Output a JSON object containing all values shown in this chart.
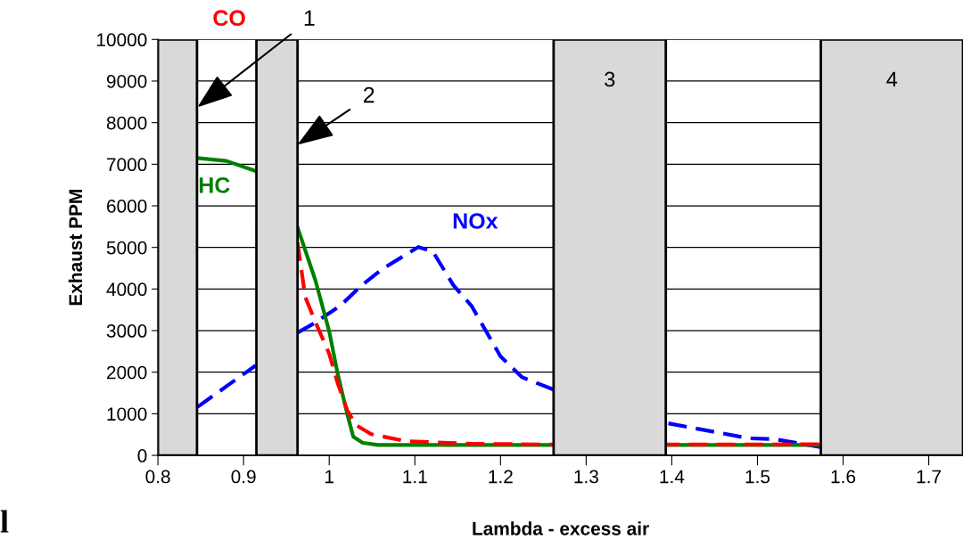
{
  "chart_data": {
    "type": "line",
    "xlabel": "Lambda - excess air",
    "ylabel": "Exhaust PPM",
    "xlim": [
      0.8,
      1.74
    ],
    "xticks": [
      {
        "value": 0.8,
        "label": "0.8"
      },
      {
        "value": 0.9,
        "label": "0.9"
      },
      {
        "value": 1.0,
        "label": "1"
      },
      {
        "value": 1.1,
        "label": "1.1"
      },
      {
        "value": 1.2,
        "label": "1.2"
      },
      {
        "value": 1.3,
        "label": "1.3"
      },
      {
        "value": 1.4,
        "label": "1.4"
      },
      {
        "value": 1.5,
        "label": "1.5"
      },
      {
        "value": 1.6,
        "label": "1.6"
      },
      {
        "value": 1.7,
        "label": "1.7"
      }
    ],
    "ylim": [
      0,
      10000
    ],
    "yticks": [
      0,
      1000,
      2000,
      3000,
      4000,
      5000,
      6000,
      7000,
      8000,
      9000,
      10000
    ],
    "grid": "y",
    "series": [
      {
        "color": "#ff0000",
        "line_style": "dashed",
        "x": [
          0.963,
          0.972,
          0.982,
          1.0,
          1.01,
          1.021,
          1.031,
          1.049,
          1.09,
          1.166,
          1.262,
          1.393,
          1.49,
          1.574
        ],
        "values": [
          5120,
          3810,
          3300,
          2440,
          1730,
          1090,
          730,
          510,
          340,
          280,
          260,
          260,
          260,
          270
        ]
      },
      {
        "color": "#008000",
        "line_style": "solid",
        "x": [
          0.846,
          0.88,
          0.915,
          0.94,
          0.963,
          0.984,
          1.0,
          1.01,
          1.021,
          1.028,
          1.039,
          1.057,
          1.262,
          1.393,
          1.574
        ],
        "values": [
          7150,
          7080,
          6830,
          null,
          5480,
          4200,
          2980,
          1950,
          1000,
          450,
          300,
          250,
          250,
          250,
          250
        ]
      },
      {
        "color": "#0000ff",
        "line_style": "dashed",
        "x": [
          0.846,
          0.914,
          0.94,
          0.963,
          0.982,
          1.013,
          1.038,
          1.062,
          1.104,
          1.121,
          1.145,
          1.166,
          1.2,
          1.225,
          1.262,
          1.33,
          1.396,
          1.49,
          1.52,
          1.573
        ],
        "values": [
          1160,
          2160,
          null,
          2950,
          3170,
          3600,
          4090,
          4480,
          5010,
          4900,
          4090,
          3600,
          2380,
          1880,
          1580,
          null,
          770,
          410,
          390,
          200
        ]
      }
    ],
    "bands": [
      {
        "axis": "x",
        "from": 0.8,
        "to": 0.8456,
        "label": null,
        "color": "#d9d9d9"
      },
      {
        "axis": "x",
        "from": 0.915,
        "to": 0.963,
        "label": null,
        "color": "#d9d9d9"
      },
      {
        "axis": "x",
        "from": 1.262,
        "to": 1.393,
        "label": "3",
        "color": "#d9d9d9"
      },
      {
        "axis": "x",
        "from": 1.574,
        "to": 1.74,
        "label": "4",
        "color": "#d9d9d9"
      }
    ],
    "annotations": [
      "CO",
      "HC",
      "NOx",
      {
        "text": "1",
        "x": 0.846,
        "y": 8370
      },
      {
        "text": "2",
        "x": 0.963,
        "y": 7470
      },
      "l"
    ]
  }
}
